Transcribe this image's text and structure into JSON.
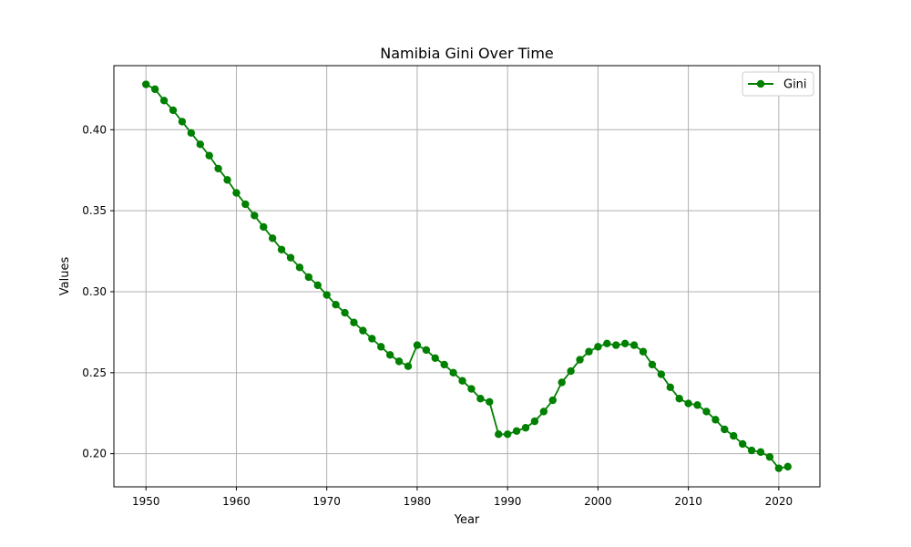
{
  "chart_data": {
    "type": "line",
    "title": "Namibia Gini Over Time",
    "xlabel": "Year",
    "ylabel": "Values",
    "xlim": [
      1946.45,
      2024.55
    ],
    "ylim": [
      0.17955,
      0.43955
    ],
    "x_ticks": [
      1950,
      1960,
      1970,
      1980,
      1990,
      2000,
      2010,
      2020
    ],
    "y_ticks": [
      0.2,
      0.25,
      0.3,
      0.35,
      0.4
    ],
    "y_tick_labels": [
      "0.20",
      "0.25",
      "0.30",
      "0.35",
      "0.40"
    ],
    "grid": true,
    "legend_position": "top-right",
    "series": [
      {
        "name": "Gini",
        "color": "#008000",
        "marker": "circle",
        "x": [
          1950,
          1951,
          1952,
          1953,
          1954,
          1955,
          1956,
          1957,
          1958,
          1959,
          1960,
          1961,
          1962,
          1963,
          1964,
          1965,
          1966,
          1967,
          1968,
          1969,
          1970,
          1971,
          1972,
          1973,
          1974,
          1975,
          1976,
          1977,
          1978,
          1979,
          1980,
          1981,
          1982,
          1983,
          1984,
          1985,
          1986,
          1987,
          1988,
          1989,
          1990,
          1991,
          1992,
          1993,
          1994,
          1995,
          1996,
          1997,
          1998,
          1999,
          2000,
          2001,
          2002,
          2003,
          2004,
          2005,
          2006,
          2007,
          2008,
          2009,
          2010,
          2011,
          2012,
          2013,
          2014,
          2015,
          2016,
          2017,
          2018,
          2019,
          2020,
          2021
        ],
        "values": [
          0.428,
          0.425,
          0.418,
          0.412,
          0.405,
          0.398,
          0.391,
          0.384,
          0.376,
          0.369,
          0.361,
          0.354,
          0.347,
          0.34,
          0.333,
          0.326,
          0.321,
          0.315,
          0.309,
          0.304,
          0.298,
          0.292,
          0.287,
          0.281,
          0.276,
          0.271,
          0.266,
          0.261,
          0.257,
          0.254,
          0.267,
          0.264,
          0.259,
          0.255,
          0.25,
          0.245,
          0.24,
          0.234,
          0.232,
          0.212,
          0.212,
          0.214,
          0.216,
          0.22,
          0.226,
          0.233,
          0.244,
          0.251,
          0.258,
          0.263,
          0.266,
          0.268,
          0.267,
          0.268,
          0.267,
          0.263,
          0.255,
          0.249,
          0.241,
          0.234,
          0.231,
          0.23,
          0.226,
          0.221,
          0.215,
          0.211,
          0.206,
          0.202,
          0.201,
          0.198,
          0.191,
          0.192
        ]
      }
    ]
  }
}
